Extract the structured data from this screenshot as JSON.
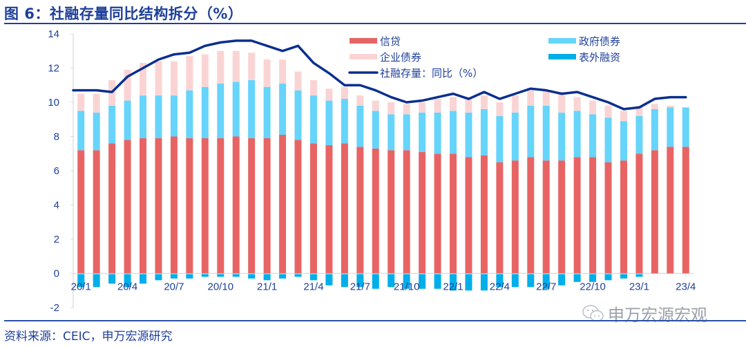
{
  "title": "图 6：社融存量同比结构拆分（%）",
  "source": "资料来源：CEIC，申万宏源研究",
  "watermark": "申万宏源宏观",
  "watermark_icon": "wechat-icon",
  "colors": {
    "credit": "#e86464",
    "gov_bonds": "#66d4fb",
    "corp_bonds": "#fad4d4",
    "off_balance": "#00aeea",
    "line": "#0a2f8f",
    "text": "#1f3f99",
    "axis": "#d9d9d9"
  },
  "chart_data": {
    "type": "bar",
    "stacked": true,
    "title": "社融存量同比结构拆分（%）",
    "xlabel": "",
    "ylabel": "",
    "ylim": [
      -2,
      14
    ],
    "yticks": [
      "14",
      "12",
      "10",
      "8",
      "6",
      "4",
      "2",
      "0",
      "-2"
    ],
    "ytick_values": [
      14,
      12,
      10,
      8,
      6,
      4,
      2,
      0,
      -2
    ],
    "xtick_labels": [
      "20/1",
      "20/4",
      "20/7",
      "20/10",
      "21/1",
      "21/4",
      "21/7",
      "21/10",
      "22/1",
      "22/4",
      "22/7",
      "22/10",
      "23/1",
      "23/4"
    ],
    "xtick_index": [
      0,
      3,
      6,
      9,
      12,
      15,
      18,
      21,
      24,
      27,
      30,
      33,
      36,
      39
    ],
    "grid": false,
    "legend_position": "top-right",
    "categories": [
      "20/1",
      "20/2",
      "20/3",
      "20/4",
      "20/5",
      "20/6",
      "20/7",
      "20/8",
      "20/9",
      "20/10",
      "20/11",
      "20/12",
      "21/1",
      "21/2",
      "21/3",
      "21/4",
      "21/5",
      "21/6",
      "21/7",
      "21/8",
      "21/9",
      "21/10",
      "21/11",
      "21/12",
      "22/1",
      "22/2",
      "22/3",
      "22/4",
      "22/5",
      "22/6",
      "22/7",
      "22/8",
      "22/9",
      "22/10",
      "22/11",
      "22/12",
      "23/1",
      "23/2",
      "23/3",
      "23/4"
    ],
    "series": [
      {
        "name": "信贷",
        "key": "credit",
        "type": "bar",
        "values": [
          7.2,
          7.2,
          7.6,
          7.8,
          7.9,
          7.9,
          8.0,
          7.9,
          7.9,
          7.9,
          8.0,
          7.9,
          7.9,
          8.1,
          7.8,
          7.6,
          7.5,
          7.6,
          7.4,
          7.3,
          7.2,
          7.2,
          7.1,
          7.0,
          7.0,
          6.8,
          6.9,
          6.5,
          6.6,
          6.8,
          6.6,
          6.6,
          6.8,
          6.8,
          6.5,
          6.6,
          7.0,
          7.2,
          7.4,
          7.4
        ]
      },
      {
        "name": "政府债券",
        "key": "gov_bonds",
        "type": "bar",
        "values": [
          2.3,
          2.2,
          2.2,
          2.3,
          2.5,
          2.5,
          2.4,
          2.8,
          3.0,
          3.2,
          3.2,
          3.4,
          3.0,
          3.0,
          2.9,
          2.8,
          2.6,
          2.6,
          2.4,
          2.2,
          2.1,
          2.1,
          2.3,
          2.4,
          2.5,
          2.6,
          2.7,
          2.7,
          2.8,
          3.0,
          3.2,
          2.8,
          2.7,
          2.5,
          2.6,
          2.3,
          2.2,
          2.4,
          2.3,
          2.3
        ]
      },
      {
        "name": "企业债券",
        "key": "corp_bonds",
        "type": "bar",
        "values": [
          1.0,
          1.1,
          1.5,
          1.8,
          1.9,
          2.0,
          2.0,
          2.0,
          1.9,
          1.9,
          1.8,
          1.6,
          1.6,
          1.4,
          1.1,
          0.9,
          0.7,
          0.7,
          0.6,
          0.6,
          0.7,
          0.6,
          0.6,
          0.8,
          0.8,
          0.9,
          0.8,
          0.8,
          1.0,
          0.9,
          0.9,
          1.2,
          0.8,
          0.8,
          0.7,
          0.6,
          0.6,
          0.3,
          0.1,
          0.0
        ]
      },
      {
        "name": "表外融资",
        "key": "off_balance",
        "type": "bar",
        "values": [
          -0.8,
          -0.8,
          -0.6,
          -0.8,
          -0.6,
          -0.4,
          -0.3,
          -0.3,
          -0.2,
          -0.2,
          -0.2,
          -0.3,
          -0.4,
          -0.3,
          -0.2,
          -0.4,
          -0.7,
          -0.8,
          -0.8,
          -0.9,
          -0.8,
          -0.9,
          -0.9,
          -0.9,
          -1.0,
          -1.0,
          -1.0,
          -0.8,
          -0.8,
          -0.8,
          -0.9,
          -0.7,
          -0.5,
          -0.5,
          -0.4,
          -0.3,
          -0.2,
          0.0,
          0.0,
          0.0
        ]
      },
      {
        "name": "社融存量：同比（%）",
        "key": "line",
        "type": "line",
        "values": [
          10.7,
          10.7,
          10.6,
          11.5,
          12.0,
          12.5,
          12.8,
          12.9,
          13.3,
          13.5,
          13.6,
          13.6,
          13.3,
          13.0,
          13.3,
          12.3,
          11.7,
          11.0,
          11.0,
          10.7,
          10.3,
          10.0,
          10.1,
          10.3,
          10.5,
          10.2,
          10.6,
          10.2,
          10.5,
          10.8,
          10.7,
          10.5,
          10.6,
          10.3,
          10.0,
          9.6,
          9.7,
          10.2,
          10.3,
          10.3
        ]
      }
    ]
  },
  "legend": [
    {
      "label": "信贷",
      "key": "credit",
      "style": "bar"
    },
    {
      "label": "政府债券",
      "key": "gov_bonds",
      "style": "bar"
    },
    {
      "label": "企业债券",
      "key": "corp_bonds",
      "style": "bar"
    },
    {
      "label": "表外融资",
      "key": "off_balance",
      "style": "bar"
    },
    {
      "label": "社融存量：同比（%）",
      "key": "line",
      "style": "line"
    }
  ]
}
